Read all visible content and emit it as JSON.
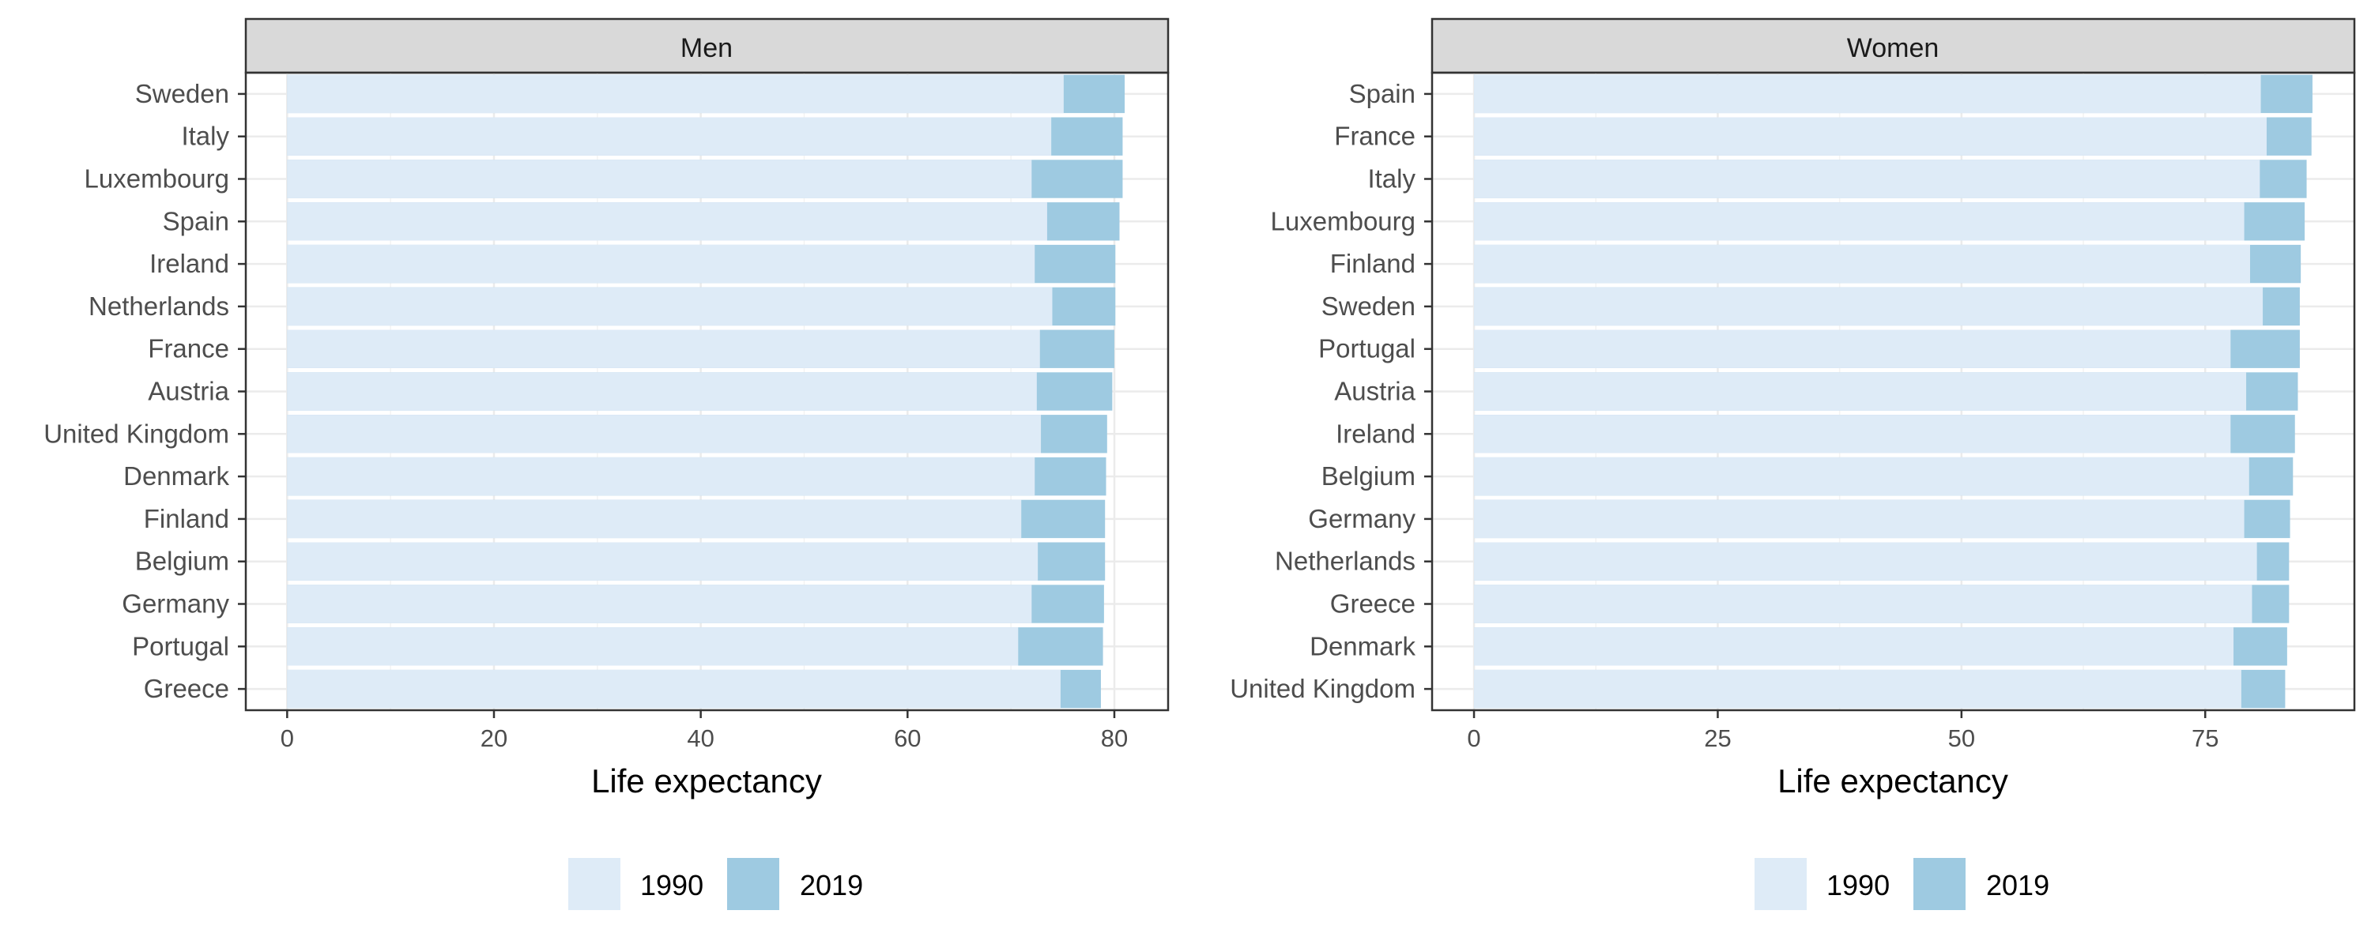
{
  "chart_data": [
    {
      "type": "bar",
      "orientation": "horizontal",
      "title": "Men",
      "xlabel": "Life expectancy",
      "ylabel": "",
      "xlim": [
        -4,
        85.2
      ],
      "xticks": [
        0,
        20,
        40,
        60,
        80
      ],
      "grid": true,
      "legend_position": "bottom",
      "categories": [
        "Sweden",
        "Italy",
        "Luxembourg",
        "Spain",
        "Ireland",
        "Netherlands",
        "France",
        "Austria",
        "United Kingdom",
        "Denmark",
        "Finland",
        "Belgium",
        "Germany",
        "Portugal",
        "Greece"
      ],
      "series": [
        {
          "name": "1990",
          "color": "#deebf7",
          "values": [
            75.1,
            73.9,
            72.0,
            73.5,
            72.3,
            74.0,
            72.8,
            72.5,
            72.9,
            72.3,
            71.0,
            72.6,
            72.0,
            70.7,
            74.8
          ]
        },
        {
          "name": "2019",
          "color": "#9ecae1",
          "values": [
            81.0,
            80.8,
            80.8,
            80.5,
            80.1,
            80.1,
            80.0,
            79.8,
            79.3,
            79.2,
            79.1,
            79.1,
            79.0,
            78.9,
            78.7
          ]
        }
      ]
    },
    {
      "type": "bar",
      "orientation": "horizontal",
      "title": "Women",
      "xlabel": "Life expectancy",
      "ylabel": "",
      "xlim": [
        -4.3,
        90.3
      ],
      "xticks": [
        0,
        25,
        50,
        75
      ],
      "grid": true,
      "legend_position": "bottom",
      "categories": [
        "Spain",
        "France",
        "Italy",
        "Luxembourg",
        "Finland",
        "Sweden",
        "Portugal",
        "Austria",
        "Ireland",
        "Belgium",
        "Germany",
        "Netherlands",
        "Greece",
        "Denmark",
        "United Kingdom"
      ],
      "series": [
        {
          "name": "1990",
          "color": "#deebf7",
          "values": [
            80.7,
            81.3,
            80.6,
            79.0,
            79.6,
            80.9,
            77.6,
            79.2,
            77.6,
            79.5,
            79.0,
            80.3,
            79.8,
            77.9,
            78.7
          ]
        },
        {
          "name": "2019",
          "color": "#9ecae1",
          "values": [
            86.0,
            85.9,
            85.4,
            85.2,
            84.8,
            84.7,
            84.7,
            84.5,
            84.2,
            84.0,
            83.7,
            83.6,
            83.6,
            83.4,
            83.2
          ]
        }
      ]
    }
  ]
}
